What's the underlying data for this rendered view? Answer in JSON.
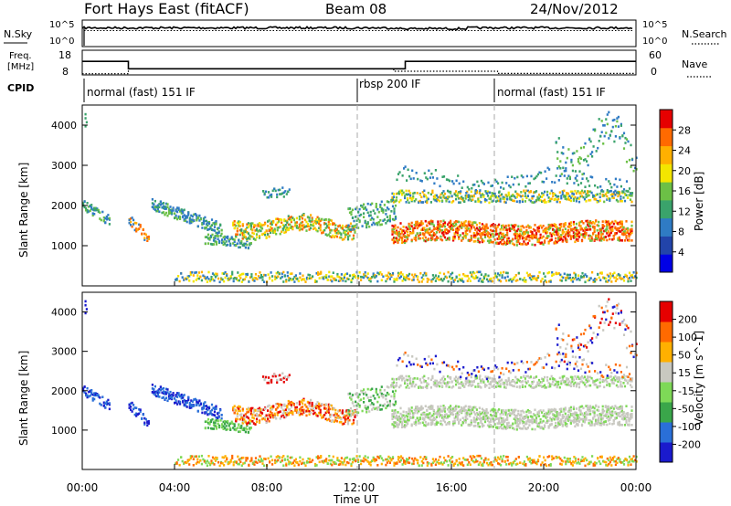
{
  "header": {
    "radar": "Fort Hays East (fitACF)",
    "beam": "Beam 08",
    "date": "24/Nov/2012"
  },
  "colors": {
    "power": [
      "#0000e6",
      "#2244aa",
      "#2f7bc4",
      "#3aa36b",
      "#6cc046",
      "#f3e600",
      "#ffb000",
      "#ff6a00",
      "#e60000"
    ],
    "velocity": [
      "#1a1acd",
      "#2a6fd8",
      "#3aa64a",
      "#7ed957",
      "#c8c8c0",
      "#ffb000",
      "#ff6a00",
      "#e60000"
    ],
    "grid": "#999999"
  },
  "chart_data": [
    {
      "type": "line",
      "panel": "noise",
      "left_label": "N.Sky",
      "right_label": "N.Search",
      "left_ticks": [
        "10^5",
        "10^0"
      ],
      "right_ticks": [
        "10^5",
        "10^0"
      ]
    },
    {
      "type": "line",
      "panel": "frequency",
      "left_label_1": "Freq.",
      "left_label_2": "[MHz]",
      "right_label": "Nave",
      "left_ticks": [
        18,
        8
      ],
      "right_ticks": [
        60,
        0
      ],
      "series": [
        {
          "x": [
            0,
            2,
            2,
            14,
            14,
            24
          ],
          "y": [
            13.5,
            13.5,
            10.5,
            10.5,
            13.5,
            13.5
          ]
        },
        {
          "x": [
            0,
            2,
            2,
            13.5,
            13.5,
            18,
            18,
            24
          ],
          "y": [
            8.5,
            8.5,
            10.5,
            10.5,
            9.5,
            9.5,
            8.6,
            8.6
          ]
        }
      ]
    },
    {
      "type": "table",
      "panel": "cpid",
      "label": "CPID",
      "segments": [
        {
          "start": 0,
          "text": "normal (fast) 151 IF"
        },
        {
          "start": 12,
          "text": "rbsp 200 IF"
        },
        {
          "start": 18,
          "text": "normal (fast) 151 IF"
        }
      ]
    },
    {
      "type": "heatmap",
      "panel": "power",
      "ylabel": "Slant Range [km]",
      "yticks": [
        1000,
        2000,
        3000,
        4000
      ],
      "ylim": [
        0,
        4500
      ],
      "colorbar_label": "Power [dB]",
      "colorbar_ticks": [
        4,
        8,
        12,
        16,
        20,
        24,
        28
      ]
    },
    {
      "type": "heatmap",
      "panel": "velocity",
      "ylabel": "Slant Range [km]",
      "yticks": [
        1000,
        2000,
        3000,
        4000
      ],
      "ylim": [
        0,
        4500
      ],
      "colorbar_label": "Velocity [m s^-1]",
      "colorbar_ticks": [
        200,
        100,
        50,
        15,
        -15,
        -50,
        -100,
        -200
      ]
    },
    {
      "type": "axis",
      "xlabel": "Time UT",
      "xticks": [
        "00:00",
        "04:00",
        "08:00",
        "12:00",
        "16:00",
        "20:00",
        "00:00"
      ],
      "xlim": [
        0,
        24
      ]
    }
  ]
}
